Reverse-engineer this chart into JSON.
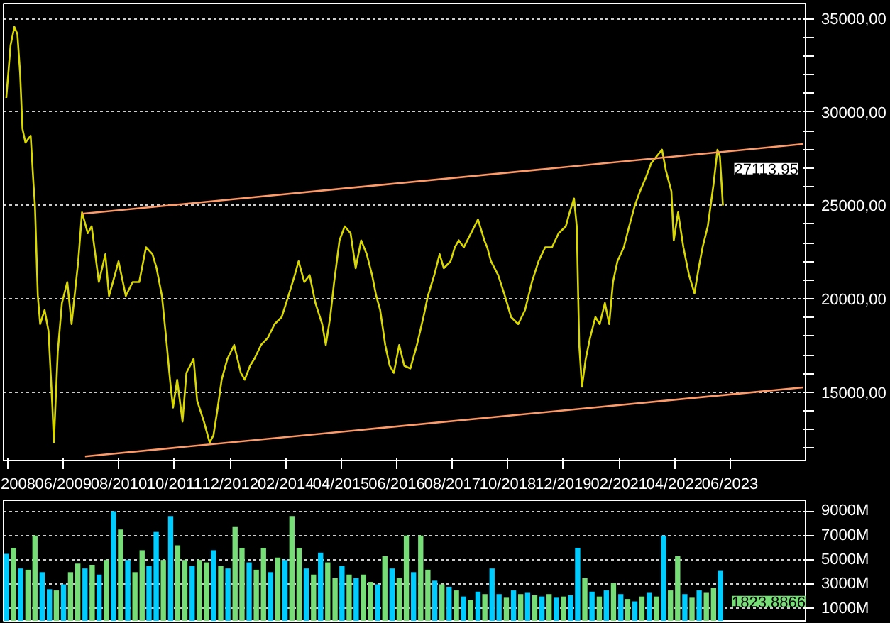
{
  "chart_data": [
    {
      "type": "line",
      "xlim": [
        "2008-02-28",
        "2025-01-01"
      ],
      "xticks": [
        {
          "value": "2008-04-01",
          "label": "2008"
        },
        {
          "value": "2009-06-01",
          "label": "06/2009"
        },
        {
          "value": "2010-08-01",
          "label": "08/2010"
        },
        {
          "value": "2011-10-01",
          "label": "10/2011"
        },
        {
          "value": "2012-12-01",
          "label": "12/2012"
        },
        {
          "value": "2014-02-01",
          "label": "02/2014"
        },
        {
          "value": "2015-04-01",
          "label": "04/2015"
        },
        {
          "value": "2016-06-01",
          "label": "06/2016"
        },
        {
          "value": "2017-08-01",
          "label": "08/2017"
        },
        {
          "value": "2018-10-01",
          "label": "10/2018"
        },
        {
          "value": "2019-12-01",
          "label": "12/2019"
        },
        {
          "value": "2021-02-01",
          "label": "02/2021"
        },
        {
          "value": "2022-04-01",
          "label": "04/2022"
        },
        {
          "value": "2023-06-01",
          "label": "06/2023"
        }
      ],
      "ylim": [
        11350,
        35800
      ],
      "yticks": [
        {
          "value": 12000,
          "label": null
        },
        {
          "value": 13000,
          "label": null
        },
        {
          "value": 14000,
          "label": null
        },
        {
          "value": 15000,
          "label": "15000,00"
        },
        {
          "value": 16000,
          "label": null
        },
        {
          "value": 17000,
          "label": null
        },
        {
          "value": 18000,
          "label": null
        },
        {
          "value": 19000,
          "label": null
        },
        {
          "value": 20000,
          "label": "20000,00"
        },
        {
          "value": 21000,
          "label": null
        },
        {
          "value": 22000,
          "label": null
        },
        {
          "value": 23000,
          "label": null
        },
        {
          "value": 24000,
          "label": null
        },
        {
          "value": 25000,
          "label": "25000,00"
        },
        {
          "value": 26000,
          "label": null
        },
        {
          "value": 27000,
          "label": null
        },
        {
          "value": 28000,
          "label": null
        },
        {
          "value": 29000,
          "label": null
        },
        {
          "value": 30000,
          "label": "30000,00"
        },
        {
          "value": 31000,
          "label": null
        },
        {
          "value": 32000,
          "label": null
        },
        {
          "value": 33000,
          "label": null
        },
        {
          "value": 34000,
          "label": null
        },
        {
          "value": 35000,
          "label": "35000,00"
        }
      ],
      "grid": "y",
      "series": [
        {
          "color": "#d8d800",
          "x": [
            "2008-03-20",
            "2008-04-22",
            "2008-05-21",
            "2008-06-13",
            "2008-07-04",
            "2008-07-22",
            "2008-08-14",
            "2008-09-23",
            "2008-10-15",
            "2008-10-26",
            "2008-11-17",
            "2008-12-05",
            "2009-01-08",
            "2009-02-07",
            "2009-03-09",
            "2009-03-20",
            "2009-04-19",
            "2009-05-21",
            "2009-07-01",
            "2009-08-03",
            "2009-09-23",
            "2009-10-22",
            "2009-12-05",
            "2010-01-04",
            "2010-02-28",
            "2010-04-19",
            "2010-05-17",
            "2010-07-01",
            "2010-07-29",
            "2010-09-23",
            "2010-11-14",
            "2011-01-04",
            "2011-02-25",
            "2011-04-15",
            "2011-05-17",
            "2011-06-27",
            "2011-07-29",
            "2011-08-28",
            "2011-09-20",
            "2011-10-22",
            "2011-12-02",
            "2012-01-01",
            "2012-02-25",
            "2012-03-23",
            "2012-05-14",
            "2012-06-27",
            "2012-07-26",
            "2012-08-28",
            "2012-09-27",
            "2012-11-10",
            "2013-01-01",
            "2013-02-21",
            "2013-03-23",
            "2013-05-03",
            "2013-06-05",
            "2013-07-26",
            "2013-09-16",
            "2013-11-07",
            "2014-01-01",
            "2014-02-21",
            "2014-04-11",
            "2014-05-10",
            "2014-06-23",
            "2014-08-03",
            "2014-09-16",
            "2014-11-07",
            "2014-12-05",
            "2015-01-08",
            "2015-02-07",
            "2015-03-20",
            "2015-04-29",
            "2015-06-13",
            "2015-07-22",
            "2015-09-02",
            "2015-10-15",
            "2015-11-25",
            "2015-12-27",
            "2016-01-26",
            "2016-03-05",
            "2016-04-08",
            "2016-05-10",
            "2016-06-20",
            "2016-07-29",
            "2016-09-13",
            "2016-11-03",
            "2016-12-23",
            "2017-01-26",
            "2017-03-16",
            "2017-04-26",
            "2017-05-28",
            "2017-07-19",
            "2017-08-21",
            "2017-09-20",
            "2017-10-29",
            "2017-12-23",
            "2018-02-14",
            "2018-04-04",
            "2018-04-26",
            "2018-05-25",
            "2018-07-19",
            "2018-09-09",
            "2018-10-26",
            "2018-12-20",
            "2019-02-10",
            "2019-04-04",
            "2019-05-25",
            "2019-07-15",
            "2019-09-05",
            "2019-10-26",
            "2019-12-20",
            "2020-01-19",
            "2020-02-21",
            "2020-03-13",
            "2020-04-01",
            "2020-04-22",
            "2020-05-21",
            "2020-06-23",
            "2020-08-03",
            "2020-09-05",
            "2020-10-15",
            "2020-11-17",
            "2020-12-16",
            "2021-01-19",
            "2021-03-09",
            "2021-04-19",
            "2021-06-02",
            "2021-07-11",
            "2021-08-25",
            "2021-10-04",
            "2021-11-14",
            "2021-12-27",
            "2022-01-26",
            "2022-03-09",
            "2022-03-27",
            "2022-04-29",
            "2022-06-09",
            "2022-07-22",
            "2022-09-02",
            "2022-10-04",
            "2022-11-03",
            "2022-12-13",
            "2023-01-26",
            "2023-02-25",
            "2023-03-16",
            "2023-04-08"
          ],
          "values": [
            30750,
            33580,
            34550,
            34180,
            32090,
            29100,
            28360,
            28730,
            26120,
            25000,
            20150,
            18650,
            19400,
            18280,
            14180,
            12310,
            17160,
            19780,
            20900,
            18650,
            22010,
            24630,
            23510,
            23880,
            20900,
            22390,
            20150,
            21270,
            22010,
            20150,
            20900,
            20900,
            22760,
            22390,
            21640,
            20150,
            17910,
            15670,
            14180,
            15670,
            13430,
            16040,
            16790,
            14550,
            13430,
            12310,
            12690,
            14180,
            15670,
            16790,
            17530,
            16040,
            15670,
            16420,
            16790,
            17530,
            17910,
            18650,
            19030,
            20150,
            21270,
            22010,
            20900,
            21270,
            19780,
            18650,
            17530,
            19030,
            20900,
            23130,
            23880,
            23510,
            21640,
            23130,
            22390,
            21270,
            20150,
            19400,
            17530,
            16420,
            16040,
            17530,
            16420,
            16270,
            17530,
            19030,
            20150,
            21270,
            22390,
            21640,
            22010,
            22760,
            23130,
            22760,
            23510,
            24250,
            23130,
            22760,
            22010,
            21270,
            20150,
            19030,
            18650,
            19400,
            20900,
            22010,
            22760,
            22760,
            23510,
            23880,
            24630,
            25370,
            23880,
            17530,
            15300,
            16790,
            17910,
            19030,
            18650,
            19780,
            18650,
            20900,
            22010,
            22760,
            23880,
            25000,
            25750,
            26490,
            27240,
            27610,
            27980,
            26860,
            25750,
            23130,
            24630,
            22760,
            21270,
            20300,
            21640,
            22760,
            23880,
            26120,
            27980,
            27610,
            25000
          ]
        },
        {
          "color": "#ff9966",
          "x": [
            "2009-10-22",
            "2024-12-13"
          ],
          "values": [
            24550,
            28280
          ]
        },
        {
          "color": "#ff9966",
          "x": [
            "2009-11-14",
            "2024-12-13"
          ],
          "values": [
            11570,
            15260
          ]
        }
      ],
      "annotations": [
        {
          "text": "27113,95",
          "x": "2023-04-08",
          "y": 27113.95
        }
      ]
    },
    {
      "type": "bar",
      "xlim": [
        "2008-02-28",
        "2025-01-01"
      ],
      "ylim": [
        0,
        9900
      ],
      "yticks": [
        {
          "value": 1000,
          "label": "1000M"
        },
        {
          "value": 3000,
          "label": "3000M"
        },
        {
          "value": 5000,
          "label": "5000M"
        },
        {
          "value": 7000,
          "label": "7000M"
        },
        {
          "value": 9000,
          "label": "9000M"
        }
      ],
      "grid": "y",
      "tick_labels": "y",
      "x": [
        "2008-03-20",
        "2008-05-14",
        "2008-07-08",
        "2008-09-02",
        "2008-10-26",
        "2008-12-20",
        "2009-02-14",
        "2009-04-08",
        "2009-06-02",
        "2009-07-26",
        "2009-09-20",
        "2009-11-14",
        "2010-01-08",
        "2010-03-02",
        "2010-04-26",
        "2010-06-20",
        "2010-08-14",
        "2010-10-08",
        "2010-12-02",
        "2011-01-26",
        "2011-03-20",
        "2011-05-14",
        "2011-07-08",
        "2011-09-02",
        "2011-10-26",
        "2011-12-20",
        "2012-02-14",
        "2012-04-08",
        "2012-06-02",
        "2012-07-26",
        "2012-09-20",
        "2012-11-14",
        "2013-01-08",
        "2013-03-02",
        "2013-04-26",
        "2013-06-20",
        "2013-08-14",
        "2013-10-08",
        "2013-12-02",
        "2014-01-26",
        "2014-03-20",
        "2014-05-14",
        "2014-07-08",
        "2014-09-02",
        "2014-10-26",
        "2014-12-20",
        "2015-02-14",
        "2015-04-08",
        "2015-06-02",
        "2015-07-26",
        "2015-09-20",
        "2015-11-14",
        "2016-01-08",
        "2016-03-02",
        "2016-04-26",
        "2016-06-20",
        "2016-08-14",
        "2016-10-08",
        "2016-12-02",
        "2017-01-26",
        "2017-03-20",
        "2017-05-14",
        "2017-07-08",
        "2017-09-02",
        "2017-10-26",
        "2017-12-20",
        "2018-02-14",
        "2018-04-08",
        "2018-06-02",
        "2018-07-26",
        "2018-09-20",
        "2018-11-14",
        "2019-01-08",
        "2019-03-02",
        "2019-04-26",
        "2019-06-20",
        "2019-08-14",
        "2019-10-08",
        "2019-12-02",
        "2020-01-26",
        "2020-03-20",
        "2020-05-14",
        "2020-07-08",
        "2020-09-02",
        "2020-10-26",
        "2020-12-20",
        "2021-02-14",
        "2021-04-08",
        "2021-06-02",
        "2021-07-26",
        "2021-09-20",
        "2021-11-14",
        "2022-01-08",
        "2022-03-02",
        "2022-04-26",
        "2022-06-20",
        "2022-08-14",
        "2022-10-08",
        "2022-12-02",
        "2023-01-26",
        "2023-03-20"
      ],
      "values": [
        5500,
        6000,
        4300,
        4200,
        7000,
        4000,
        2600,
        2500,
        3000,
        4000,
        4700,
        4300,
        4600,
        3800,
        5000,
        9000,
        7500,
        5000,
        4000,
        5800,
        4500,
        7300,
        5000,
        8600,
        6200,
        5000,
        4500,
        5000,
        4800,
        5800,
        4500,
        4300,
        7700,
        6000,
        4800,
        4200,
        6000,
        4000,
        5200,
        5000,
        8600,
        6000,
        4300,
        3800,
        5600,
        4800,
        3500,
        4500,
        3800,
        3500,
        3800,
        3200,
        3000,
        5300,
        4300,
        3500,
        7000,
        4000,
        7000,
        4200,
        3300,
        3000,
        2800,
        2500,
        2000,
        1700,
        2400,
        2200,
        4300,
        2200,
        1900,
        2500,
        2200,
        2300,
        2100,
        2000,
        2200,
        1900,
        2000,
        2100,
        6000,
        3500,
        2400,
        2000,
        2500,
        3100,
        2200,
        1800,
        1600,
        2000,
        2300,
        2000,
        7000,
        2500,
        5300,
        2200,
        1900,
        2500,
        2300,
        2700,
        4100
      ],
      "colors": [
        "#00ccff",
        "#77dd77",
        "#00ccff",
        "#77dd77",
        "#77dd77",
        "#00ccff",
        "#00ccff",
        "#77dd77",
        "#00ccff",
        "#77dd77",
        "#77dd77",
        "#00ccff",
        "#77dd77",
        "#00ccff",
        "#77dd77",
        "#00ccff",
        "#77dd77",
        "#00ccff",
        "#77dd77",
        "#77dd77",
        "#00ccff",
        "#00ccff",
        "#77dd77",
        "#00ccff",
        "#77dd77",
        "#77dd77",
        "#00ccff",
        "#77dd77",
        "#77dd77",
        "#00ccff",
        "#77dd77",
        "#00ccff",
        "#77dd77",
        "#77dd77",
        "#00ccff",
        "#77dd77",
        "#77dd77",
        "#00ccff",
        "#77dd77",
        "#00ccff",
        "#77dd77",
        "#77dd77",
        "#00ccff",
        "#77dd77",
        "#00ccff",
        "#77dd77",
        "#77dd77",
        "#00ccff",
        "#77dd77",
        "#00ccff",
        "#77dd77",
        "#77dd77",
        "#00ccff",
        "#77dd77",
        "#00ccff",
        "#77dd77",
        "#77dd77",
        "#00ccff",
        "#77dd77",
        "#77dd77",
        "#00ccff",
        "#77dd77",
        "#00ccff",
        "#77dd77",
        "#00ccff",
        "#77dd77",
        "#00ccff",
        "#77dd77",
        "#00ccff",
        "#00ccff",
        "#77dd77",
        "#00ccff",
        "#77dd77",
        "#00ccff",
        "#77dd77",
        "#00ccff",
        "#77dd77",
        "#00ccff",
        "#77dd77",
        "#00ccff",
        "#00ccff",
        "#77dd77",
        "#00ccff",
        "#77dd77",
        "#00ccff",
        "#77dd77",
        "#00ccff",
        "#77dd77",
        "#00ccff",
        "#77dd77",
        "#00ccff",
        "#77dd77",
        "#00ccff",
        "#77dd77",
        "#77dd77",
        "#00ccff",
        "#77dd77",
        "#00ccff",
        "#77dd77",
        "#77dd77",
        "#00ccff"
      ],
      "annotations": [
        {
          "text": "1823,8866",
          "x": "2023-03-20",
          "y": 1823.89
        }
      ]
    }
  ]
}
